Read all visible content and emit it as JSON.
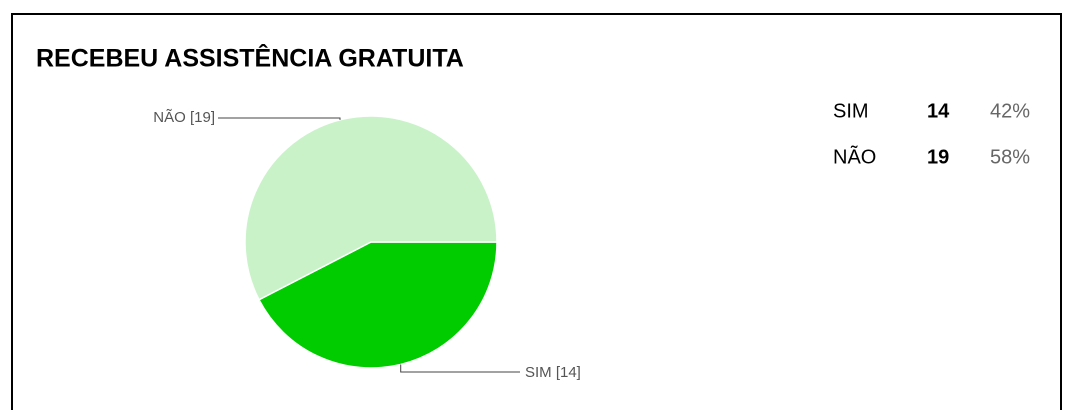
{
  "chart_data": {
    "type": "pie",
    "title": "RECEBEU ASSISTÊNCIA GRATUITA",
    "categories": [
      "SIM",
      "NÃO"
    ],
    "values": [
      14,
      19
    ],
    "value_labels": [
      "SIM [14]",
      "NÃO [19]"
    ],
    "colors": [
      "#00cc00",
      "#c9f2c9"
    ],
    "legend_percentages": [
      "42%",
      "58%"
    ]
  }
}
